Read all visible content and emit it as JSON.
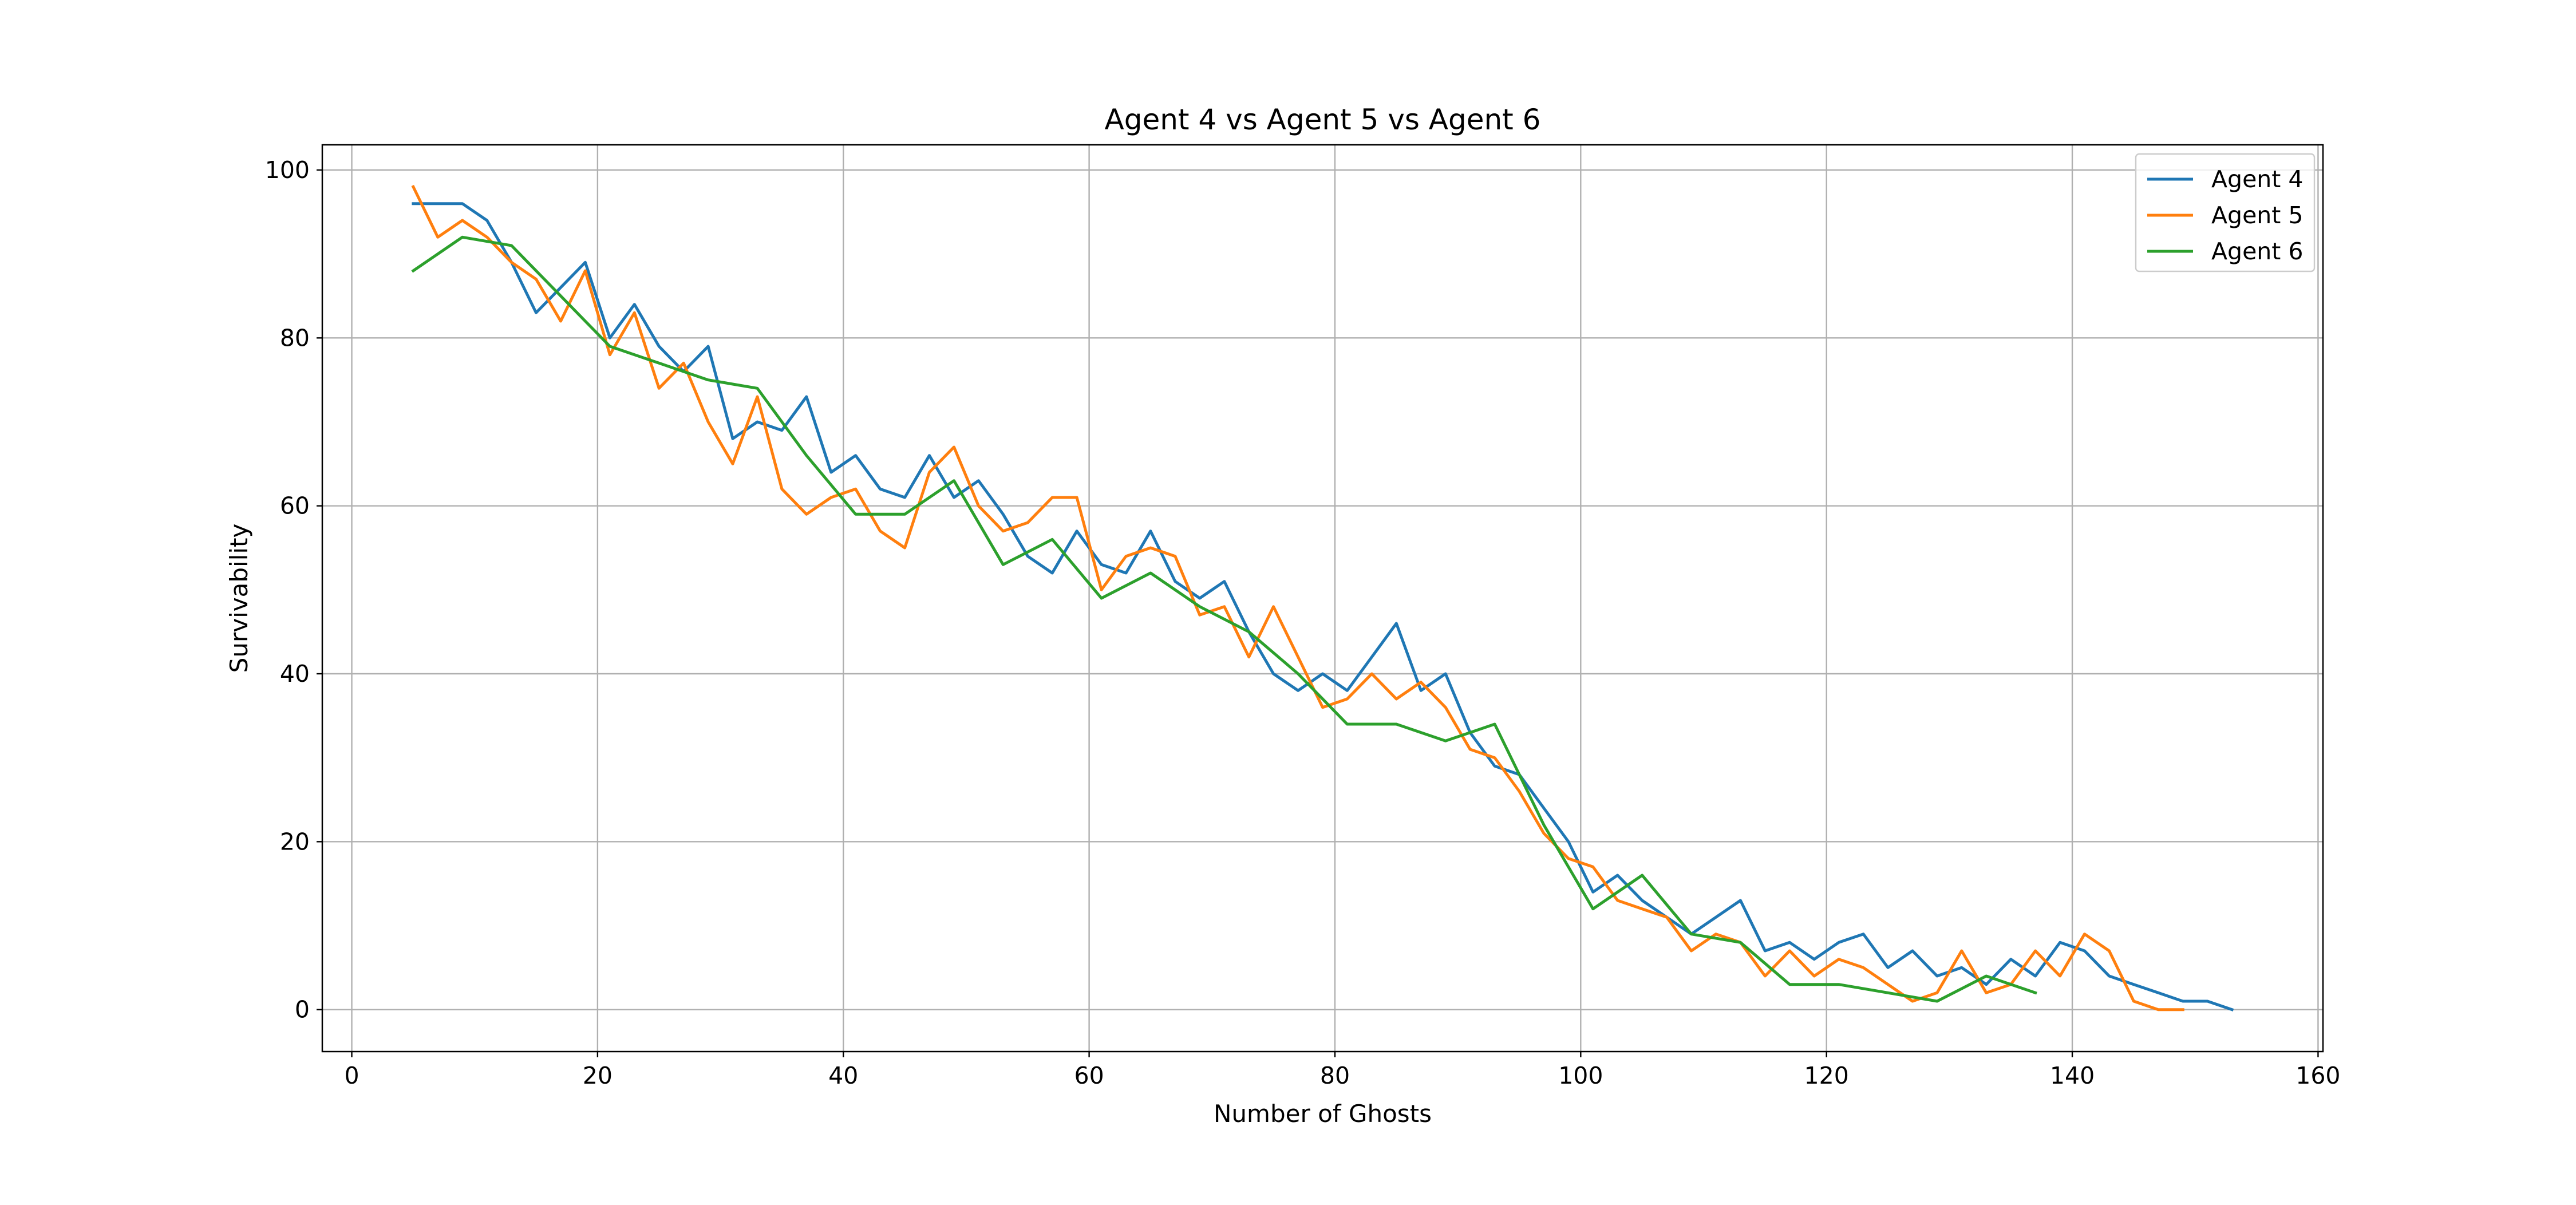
{
  "chart_data": {
    "type": "line",
    "title": "Agent 4 vs Agent 5 vs Agent 6",
    "xlabel": "Number of Ghosts",
    "ylabel": "Survivability",
    "xlim": [
      -2.4,
      160.4
    ],
    "ylim": [
      -5,
      103
    ],
    "xticks": [
      0,
      20,
      40,
      60,
      80,
      100,
      120,
      140,
      160
    ],
    "yticks": [
      0,
      20,
      40,
      60,
      80,
      100
    ],
    "grid": true,
    "legend_position": "top-right",
    "series": [
      {
        "name": "Agent 4",
        "color": "#1f77b4",
        "x": [
          5,
          7,
          9,
          11,
          13,
          15,
          17,
          19,
          21,
          23,
          25,
          27,
          29,
          31,
          33,
          35,
          37,
          39,
          41,
          43,
          45,
          47,
          49,
          51,
          53,
          55,
          57,
          59,
          61,
          63,
          65,
          67,
          69,
          71,
          73,
          75,
          77,
          79,
          81,
          83,
          85,
          87,
          89,
          91,
          93,
          95,
          97,
          99,
          101,
          103,
          105,
          107,
          109,
          111,
          113,
          115,
          117,
          119,
          121,
          123,
          125,
          127,
          129,
          131,
          133,
          135,
          137,
          139,
          141,
          143,
          145,
          147,
          149,
          151,
          153
        ],
        "y": [
          96,
          96,
          96,
          94,
          89,
          83,
          86,
          89,
          80,
          84,
          79,
          76,
          79,
          68,
          70,
          69,
          73,
          64,
          66,
          62,
          61,
          66,
          61,
          63,
          59,
          54,
          52,
          57,
          53,
          52,
          57,
          51,
          49,
          51,
          45,
          40,
          38,
          40,
          38,
          42,
          46,
          38,
          40,
          33,
          29,
          28,
          24,
          20,
          14,
          16,
          13,
          11,
          9,
          11,
          13,
          7,
          8,
          6,
          8,
          9,
          5,
          7,
          4,
          5,
          3,
          6,
          4,
          8,
          7,
          4,
          3,
          2,
          1,
          1,
          0
        ]
      },
      {
        "name": "Agent 5",
        "color": "#ff7f0e",
        "x": [
          5,
          7,
          9,
          11,
          13,
          15,
          17,
          19,
          21,
          23,
          25,
          27,
          29,
          31,
          33,
          35,
          37,
          39,
          41,
          43,
          45,
          47,
          49,
          51,
          53,
          55,
          57,
          59,
          61,
          63,
          65,
          67,
          69,
          71,
          73,
          75,
          77,
          79,
          81,
          83,
          85,
          87,
          89,
          91,
          93,
          95,
          97,
          99,
          101,
          103,
          105,
          107,
          109,
          111,
          113,
          115,
          117,
          119,
          121,
          123,
          125,
          127,
          129,
          131,
          133,
          135,
          137,
          139,
          141,
          143,
          145,
          147,
          149
        ],
        "y": [
          98,
          92,
          94,
          92,
          89,
          87,
          82,
          88,
          78,
          83,
          74,
          77,
          70,
          65,
          73,
          62,
          59,
          61,
          62,
          57,
          55,
          64,
          67,
          60,
          57,
          58,
          61,
          61,
          50,
          54,
          55,
          54,
          47,
          48,
          42,
          48,
          42,
          36,
          37,
          40,
          37,
          39,
          36,
          31,
          30,
          26,
          21,
          18,
          17,
          13,
          12,
          11,
          7,
          9,
          8,
          4,
          7,
          4,
          6,
          5,
          3,
          1,
          2,
          7,
          2,
          3,
          7,
          4,
          9,
          7,
          1,
          0,
          0
        ]
      },
      {
        "name": "Agent 6",
        "color": "#2ca02c",
        "x": [
          5,
          9,
          13,
          17,
          21,
          25,
          29,
          33,
          37,
          41,
          45,
          49,
          53,
          57,
          61,
          65,
          69,
          73,
          77,
          81,
          85,
          89,
          93,
          97,
          101,
          105,
          109,
          113,
          117,
          121,
          125,
          129,
          133,
          137
        ],
        "y": [
          88,
          92,
          91,
          85,
          79,
          77,
          75,
          74,
          66,
          59,
          59,
          63,
          53,
          56,
          49,
          52,
          48,
          45,
          40,
          34,
          34,
          32,
          34,
          22,
          12,
          16,
          9,
          8,
          3,
          3,
          2,
          1,
          4,
          2
        ]
      }
    ]
  }
}
